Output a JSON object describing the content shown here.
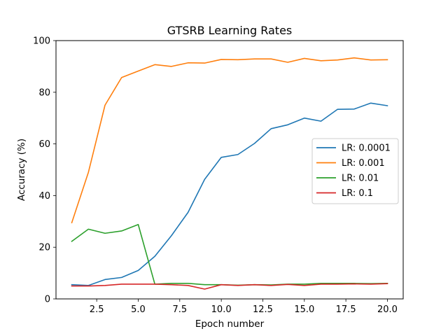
{
  "chart_data": {
    "type": "line",
    "title": "GTSRB Learning Rates",
    "xlabel": "Epoch number",
    "ylabel": "Accuracy (%)",
    "xlim": [
      0.05,
      20.95
    ],
    "ylim": [
      0,
      100
    ],
    "xticks": [
      2.5,
      5.0,
      7.5,
      10.0,
      12.5,
      15.0,
      17.5,
      20.0
    ],
    "xtick_labels": [
      "2.5",
      "5.0",
      "7.5",
      "10.0",
      "12.5",
      "15.0",
      "17.5",
      "20.0"
    ],
    "yticks": [
      0,
      20,
      40,
      60,
      80,
      100
    ],
    "ytick_labels": [
      "0",
      "20",
      "40",
      "60",
      "80",
      "100"
    ],
    "grid": false,
    "legend_position": "center-right",
    "x": [
      1,
      2,
      3,
      4,
      5,
      6,
      7,
      8,
      9,
      10,
      11,
      12,
      13,
      14,
      15,
      16,
      17,
      18,
      19,
      20
    ],
    "series": [
      {
        "name": "LR: 0.0001",
        "color": "#1f77b4",
        "values": [
          5.5,
          5.2,
          7.5,
          8.3,
          11.0,
          16.5,
          24.5,
          33.5,
          46.3,
          54.8,
          55.9,
          60.2,
          65.9,
          67.4,
          70.0,
          68.8,
          73.4,
          73.5,
          75.8,
          74.8
        ]
      },
      {
        "name": "LR: 0.001",
        "color": "#ff7f0e",
        "values": [
          29.5,
          49.0,
          75.0,
          85.7,
          88.2,
          90.7,
          90.0,
          91.4,
          91.3,
          92.7,
          92.6,
          92.9,
          92.9,
          91.6,
          93.1,
          92.2,
          92.5,
          93.3,
          92.5,
          92.6
        ]
      },
      {
        "name": "LR: 0.01",
        "color": "#2ca02c",
        "values": [
          22.3,
          27.0,
          25.4,
          26.3,
          28.8,
          5.7,
          6.0,
          6.0,
          5.5,
          5.5,
          5.3,
          5.5,
          5.4,
          5.7,
          5.7,
          6.0,
          6.0,
          6.0,
          5.9,
          6.0
        ]
      },
      {
        "name": "LR: 0.1",
        "color": "#d62728",
        "values": [
          5.0,
          5.0,
          5.2,
          5.7,
          5.7,
          5.7,
          5.5,
          5.2,
          3.8,
          5.5,
          5.2,
          5.5,
          5.2,
          5.6,
          5.2,
          5.7,
          5.7,
          5.8,
          5.7,
          5.9
        ]
      }
    ]
  }
}
